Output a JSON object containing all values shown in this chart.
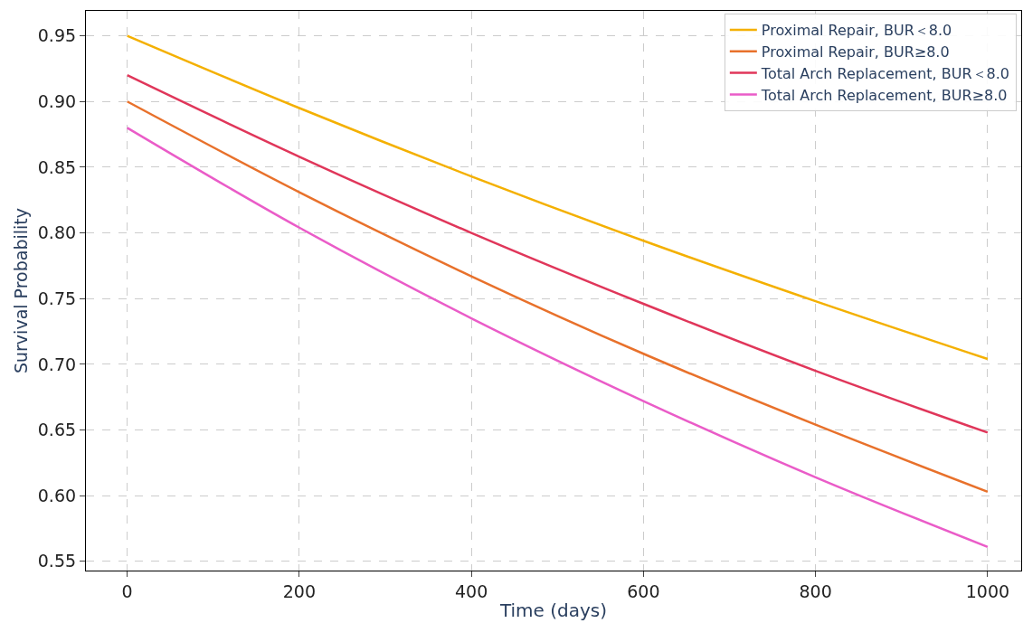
{
  "chart_data": {
    "type": "line",
    "xlabel": "Time (days)",
    "ylabel": "Survival Probability",
    "x": [
      0,
      200,
      400,
      600,
      800,
      1000
    ],
    "series": [
      {
        "name": "Proximal Repair, BUR＜8.0",
        "color": "#f4b000",
        "values": [
          0.95,
          0.895,
          0.843,
          0.794,
          0.748,
          0.704
        ]
      },
      {
        "name": "Proximal Repair, BUR≥8.0",
        "color": "#e8712b",
        "values": [
          0.9,
          0.831,
          0.767,
          0.708,
          0.654,
          0.603
        ]
      },
      {
        "name": "Total Arch Replacement, BUR＜8.0",
        "color": "#e0365a",
        "values": [
          0.92,
          0.858,
          0.8,
          0.746,
          0.695,
          0.648
        ]
      },
      {
        "name": "Total Arch Replacement, BUR≥8.0",
        "color": "#ea5cc8",
        "values": [
          0.88,
          0.804,
          0.735,
          0.672,
          0.614,
          0.561
        ]
      }
    ],
    "xlim": [
      -48,
      1039
    ],
    "xticks": [
      0,
      200,
      400,
      600,
      800,
      1000
    ],
    "ylim": [
      0.543,
      0.969
    ],
    "yticks": [
      0.55,
      {
        "value": 0.6,
        "label": "0.60"
      },
      0.65,
      {
        "value": 0.7,
        "label": "0.70"
      },
      0.75,
      {
        "value": 0.8,
        "label": "0.80"
      },
      0.85,
      {
        "value": 0.9,
        "label": "0.90"
      },
      0.95
    ],
    "grid": true,
    "legend": "top right",
    "line_style": "solid",
    "marker": "none"
  }
}
